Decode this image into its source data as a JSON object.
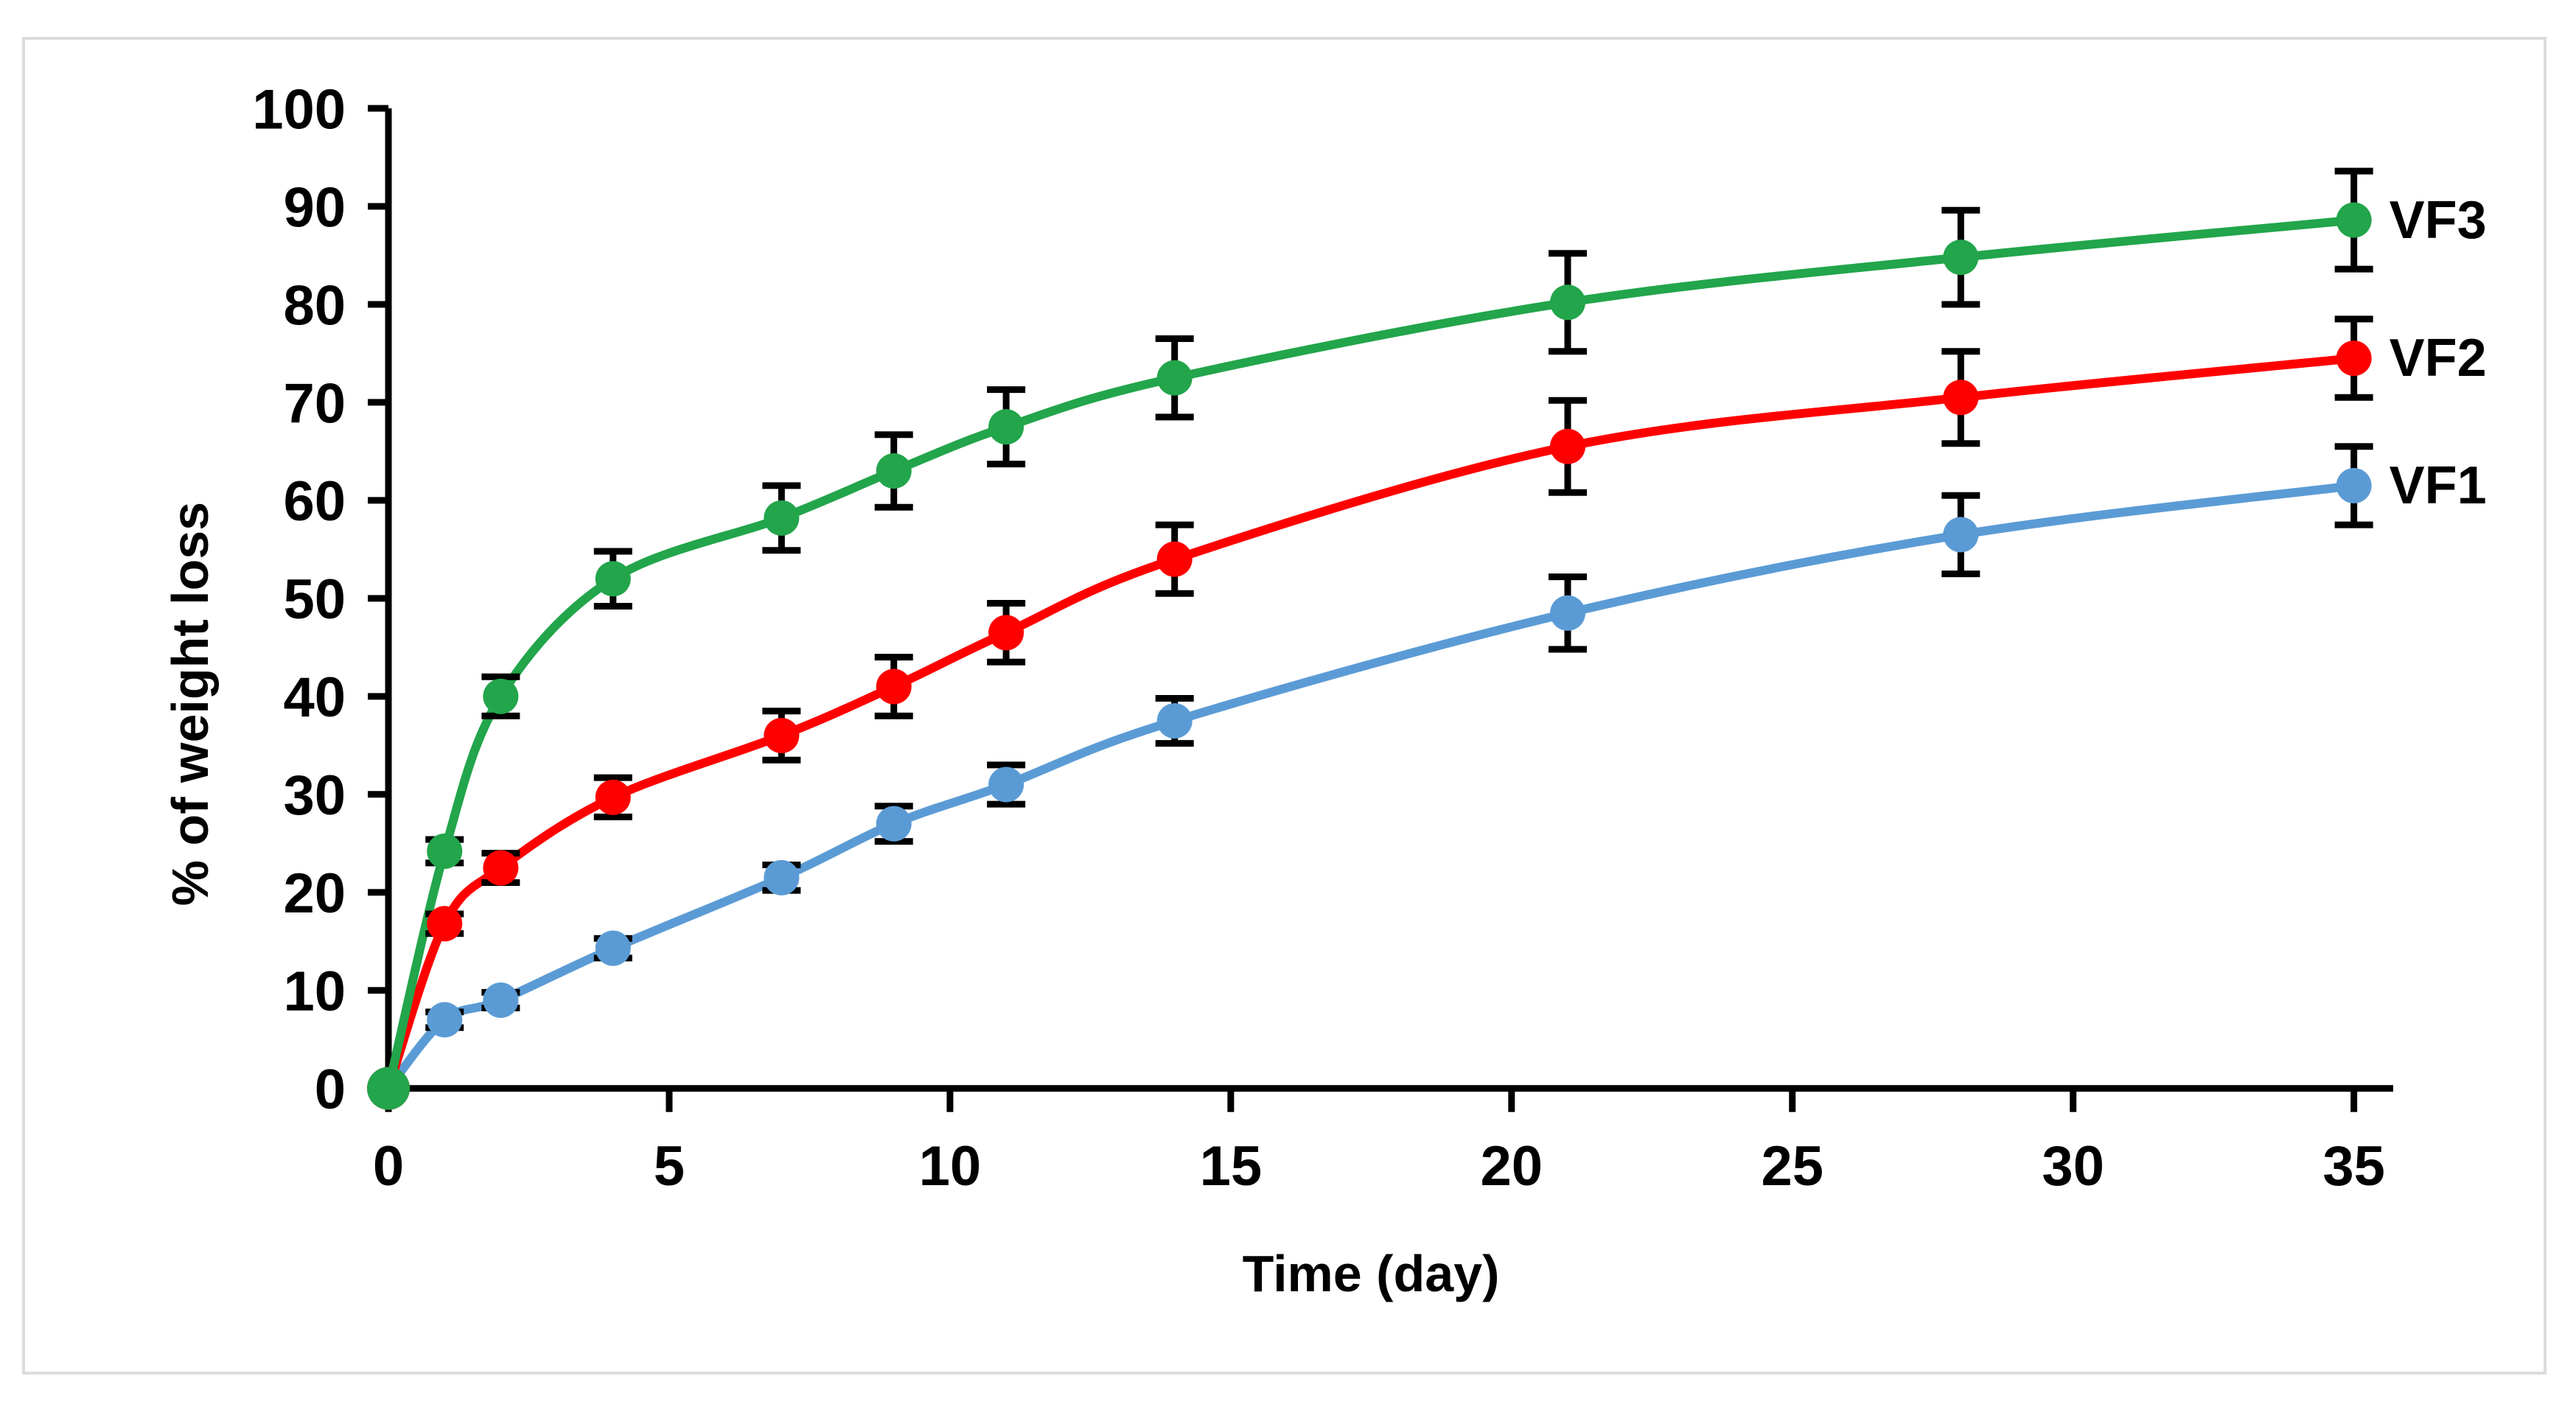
{
  "figure": {
    "background_color": "#ffffff",
    "border_color": "#dcdcdc"
  },
  "chart_data": {
    "type": "line",
    "title": "",
    "xlabel": "Time (day)",
    "ylabel": "% of weight loss",
    "x": [
      0,
      1,
      2,
      4,
      7,
      9,
      11,
      14,
      21,
      28,
      35
    ],
    "x_ticks": [
      0,
      5,
      10,
      15,
      20,
      25,
      30,
      35
    ],
    "y_ticks": [
      0,
      10,
      20,
      30,
      40,
      50,
      60,
      70,
      80,
      90,
      100
    ],
    "xlim": [
      0,
      35.7
    ],
    "ylim": [
      0,
      100
    ],
    "grid": false,
    "legend_position": "end-of-line-labels",
    "axis_color": "#000000",
    "marker": "circle",
    "error_bars": true,
    "series": [
      {
        "name": "VF1",
        "color": "#5b9bd5",
        "values": [
          0,
          7,
          9,
          14.3,
          21.5,
          27,
          31,
          37.5,
          48.5,
          56.5,
          61.5
        ],
        "errors": [
          0,
          0.8,
          0.8,
          1,
          1.3,
          1.8,
          2,
          2.3,
          3.7,
          4,
          4
        ]
      },
      {
        "name": "VF2",
        "color": "#fe0000",
        "values": [
          0,
          16.8,
          22.5,
          29.7,
          36,
          41,
          46.5,
          54,
          65.5,
          70.5,
          74.5
        ],
        "errors": [
          0,
          1,
          1.5,
          2,
          2.5,
          3,
          3,
          3.5,
          4.7,
          4.7,
          4
        ]
      },
      {
        "name": "VF3",
        "color": "#22a54b",
        "values": [
          0,
          24.2,
          40,
          52,
          58.2,
          63,
          67.5,
          72.5,
          80.2,
          84.8,
          88.6
        ],
        "errors": [
          0,
          1.2,
          2,
          2.8,
          3.3,
          3.7,
          3.8,
          4,
          5,
          4.8,
          5
        ]
      }
    ]
  }
}
